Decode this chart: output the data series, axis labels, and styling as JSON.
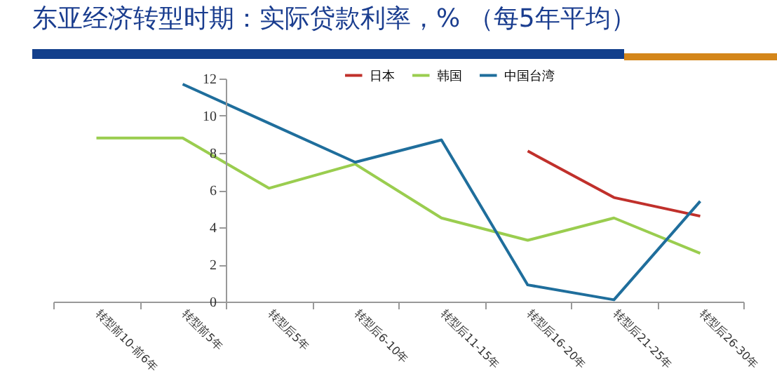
{
  "chart_data": {
    "type": "line",
    "title": "东亚经济转型时期：实际贷款利率，% （每5年平均）",
    "categories": [
      "转型前10-前6年",
      "转型前5年",
      "转型后5年",
      "转型后6-10年",
      "转型后11-15年",
      "转型后16-20年",
      "转型后21-25年",
      "转型后26-30年"
    ],
    "series": [
      {
        "name": "日本",
        "color": "#c0302b",
        "values": [
          null,
          null,
          null,
          null,
          null,
          8.1,
          5.6,
          4.6
        ]
      },
      {
        "name": "韩国",
        "color": "#9acd4f",
        "values": [
          8.8,
          8.8,
          6.1,
          7.4,
          4.5,
          3.3,
          4.5,
          2.6
        ]
      },
      {
        "name": "中国台湾",
        "color": "#1f6e9c",
        "values": [
          null,
          11.7,
          9.6,
          7.5,
          8.7,
          0.9,
          0.1,
          5.4
        ]
      }
    ],
    "ylim": [
      0,
      12
    ],
    "yticks": [
      0,
      2,
      4,
      6,
      8,
      10,
      12
    ],
    "legend": "top",
    "grid": false
  }
}
